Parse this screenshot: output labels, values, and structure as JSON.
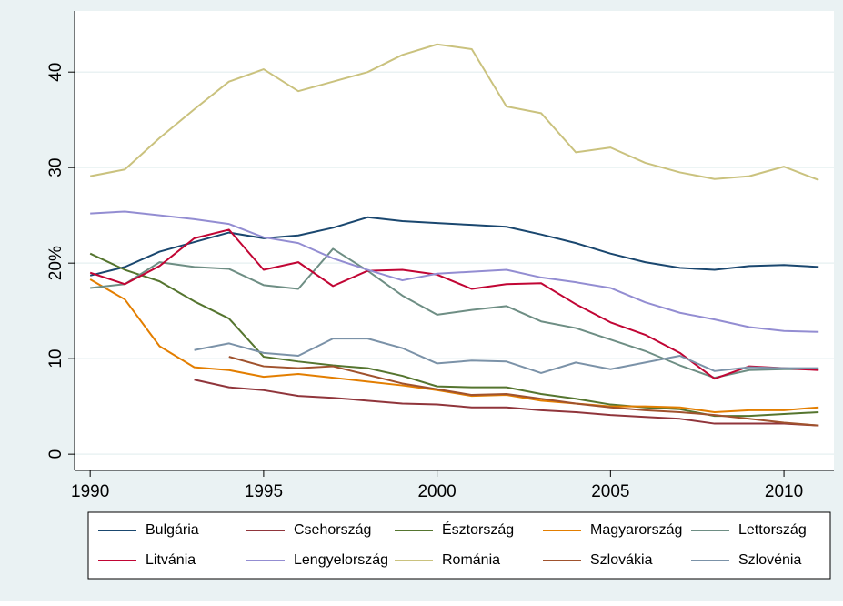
{
  "chart_data": {
    "type": "line",
    "x": [
      1990,
      1991,
      1992,
      1993,
      1994,
      1995,
      1996,
      1997,
      1998,
      1999,
      2000,
      2001,
      2002,
      2003,
      2004,
      2005,
      2006,
      2007,
      2008,
      2009,
      2010,
      2011
    ],
    "xlim": [
      1989.55,
      2011.44
    ],
    "xticks": [
      1990,
      1995,
      2000,
      2005,
      2010
    ],
    "ylim": [
      -1.7,
      46.4
    ],
    "yticks": [
      0,
      10,
      {
        "value": 20,
        "label": "20%"
      },
      30,
      40
    ],
    "grid": true,
    "legend": "bottom",
    "series": [
      {
        "name": "Bulgária",
        "color": "#1a476f",
        "values": [
          18.7,
          19.6,
          21.2,
          22.2,
          23.2,
          22.6,
          22.9,
          23.7,
          24.8,
          24.4,
          24.2,
          24.0,
          23.8,
          23.0,
          22.1,
          21.0,
          20.1,
          19.5,
          19.3,
          19.7,
          19.8,
          19.6
        ]
      },
      {
        "name": "Csehország",
        "color": "#90353b",
        "values": [
          null,
          null,
          null,
          7.8,
          7.0,
          6.7,
          6.1,
          5.9,
          5.6,
          5.3,
          5.2,
          4.9,
          4.9,
          4.6,
          4.4,
          4.1,
          3.9,
          3.7,
          3.2,
          3.2,
          3.2,
          3.0
        ]
      },
      {
        "name": "Észtország",
        "color": "#55752f",
        "values": [
          21.0,
          19.3,
          18.1,
          16.0,
          14.2,
          10.2,
          9.7,
          9.3,
          9.0,
          8.2,
          7.1,
          7.0,
          7.0,
          6.3,
          5.8,
          5.2,
          4.9,
          4.7,
          4.0,
          4.0,
          4.2,
          4.4
        ]
      },
      {
        "name": "Magyarország",
        "color": "#e37e00",
        "values": [
          18.3,
          16.2,
          11.3,
          9.1,
          8.8,
          8.1,
          8.4,
          8.0,
          7.6,
          7.2,
          6.7,
          6.1,
          6.2,
          5.6,
          5.3,
          5.0,
          5.0,
          4.9,
          4.4,
          4.6,
          4.6,
          4.9
        ]
      },
      {
        "name": "Lettország",
        "color": "#6e8e84",
        "values": [
          17.4,
          17.8,
          20.1,
          19.6,
          19.4,
          17.7,
          17.3,
          21.5,
          19.2,
          16.6,
          14.6,
          15.1,
          15.5,
          13.9,
          13.2,
          12.0,
          10.8,
          9.3,
          8.0,
          8.8,
          8.9,
          8.9
        ]
      },
      {
        "name": "Litvánia",
        "color": "#c10534",
        "values": [
          19.0,
          17.8,
          19.7,
          22.6,
          23.5,
          19.3,
          20.1,
          17.6,
          19.2,
          19.3,
          18.8,
          17.3,
          17.8,
          17.9,
          15.7,
          13.8,
          12.5,
          10.6,
          7.9,
          9.2,
          9.0,
          8.8
        ]
      },
      {
        "name": "Lengyelország",
        "color": "#938dd2",
        "values": [
          25.2,
          25.4,
          25.0,
          24.6,
          24.1,
          22.7,
          22.1,
          20.5,
          19.3,
          18.2,
          18.9,
          19.1,
          19.3,
          18.5,
          18.0,
          17.4,
          15.9,
          14.8,
          14.1,
          13.3,
          12.9,
          12.8
        ]
      },
      {
        "name": "Románia",
        "color": "#cac27e",
        "values": [
          29.1,
          29.8,
          33.1,
          36.1,
          39.0,
          40.3,
          38.0,
          39.0,
          40.0,
          41.8,
          42.9,
          42.4,
          36.4,
          35.7,
          31.6,
          32.1,
          30.5,
          29.5,
          28.8,
          29.1,
          30.1,
          28.7
        ]
      },
      {
        "name": "Szlovákia",
        "color": "#a0522d",
        "values": [
          null,
          null,
          null,
          null,
          10.2,
          9.2,
          9.0,
          9.2,
          8.3,
          7.4,
          6.8,
          6.2,
          6.3,
          5.8,
          5.3,
          4.9,
          4.6,
          4.4,
          4.1,
          3.7,
          3.3,
          3.0
        ]
      },
      {
        "name": "Szlovénia",
        "color": "#7b92a8",
        "values": [
          null,
          null,
          null,
          10.9,
          11.6,
          10.6,
          10.3,
          12.1,
          12.1,
          11.1,
          9.5,
          9.8,
          9.7,
          8.5,
          9.6,
          8.9,
          9.6,
          10.3,
          8.7,
          9.1,
          9.0,
          9.0
        ]
      }
    ]
  }
}
